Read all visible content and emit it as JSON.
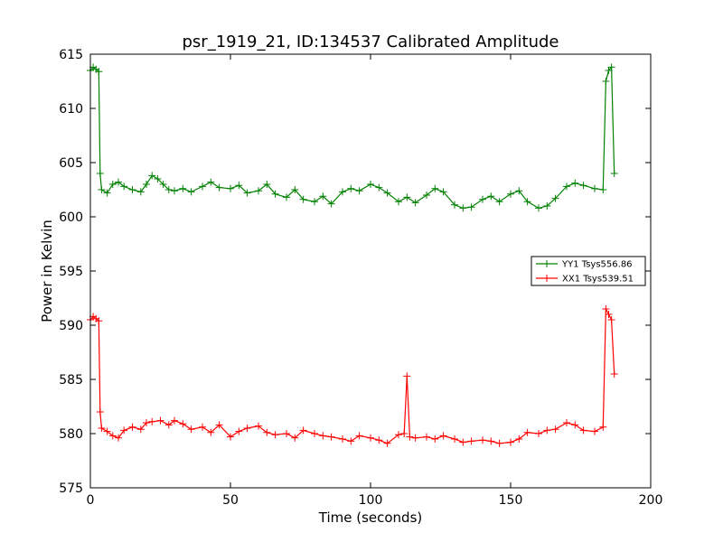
{
  "chart_data": {
    "type": "line",
    "title": "psr_1919_21, ID:134537 Calibrated Amplitude",
    "xlabel": "Time (seconds)",
    "ylabel": "Power in Kelvin",
    "xlim": [
      0,
      200
    ],
    "ylim": [
      575,
      615
    ],
    "xticks": [
      "0",
      "50",
      "100",
      "150",
      "200"
    ],
    "yticks": [
      "575",
      "580",
      "585",
      "590",
      "595",
      "600",
      "605",
      "610",
      "615"
    ],
    "grid": false,
    "legend_position": "right",
    "series": [
      {
        "name": "YY1 Tsys556.86",
        "color": "#008000",
        "marker": "plus",
        "x": [
          0,
          1,
          2,
          3,
          3.5,
          4,
          6,
          8,
          10,
          12,
          15,
          18,
          20,
          22,
          24,
          26,
          28,
          30,
          33,
          36,
          40,
          43,
          46,
          50,
          53,
          56,
          60,
          63,
          66,
          70,
          73,
          76,
          80,
          83,
          86,
          90,
          93,
          96,
          100,
          103,
          106,
          110,
          113,
          116,
          120,
          123,
          126,
          130,
          133,
          136,
          140,
          143,
          146,
          150,
          153,
          156,
          160,
          163,
          166,
          170,
          173,
          176,
          180,
          183,
          184,
          185,
          186,
          187
        ],
        "y": [
          613.5,
          613.8,
          613.6,
          613.4,
          604,
          602.5,
          602.2,
          603,
          603.2,
          602.8,
          602.5,
          602.3,
          603,
          603.8,
          603.5,
          603,
          602.5,
          602.4,
          602.6,
          602.3,
          602.8,
          603.2,
          602.7,
          602.6,
          602.9,
          602.2,
          602.4,
          603,
          602.1,
          601.8,
          602.5,
          601.6,
          601.4,
          601.9,
          601.2,
          602.3,
          602.6,
          602.4,
          603,
          602.7,
          602.2,
          601.4,
          601.8,
          601.3,
          602.0,
          602.6,
          602.3,
          601.1,
          600.8,
          600.9,
          601.6,
          601.9,
          601.4,
          602.1,
          602.4,
          601.4,
          600.8,
          601.0,
          601.7,
          602.8,
          603.1,
          602.9,
          602.6,
          602.5,
          612.5,
          613.5,
          613.8,
          604
        ]
      },
      {
        "name": "XX1 Tsys539.51",
        "color": "#ff0000",
        "marker": "plus",
        "x": [
          0,
          1,
          2,
          3,
          3.5,
          4,
          6,
          8,
          10,
          12,
          15,
          18,
          20,
          22,
          25,
          28,
          30,
          33,
          36,
          40,
          43,
          46,
          50,
          53,
          56,
          60,
          63,
          66,
          70,
          73,
          76,
          80,
          83,
          86,
          90,
          93,
          96,
          100,
          103,
          106,
          110,
          112,
          113,
          114,
          116,
          120,
          123,
          126,
          130,
          133,
          136,
          140,
          143,
          146,
          150,
          153,
          156,
          160,
          163,
          166,
          170,
          173,
          176,
          180,
          183,
          184,
          185,
          186,
          187
        ],
        "y": [
          590.5,
          590.8,
          590.6,
          590.4,
          582,
          580.5,
          580.2,
          579.8,
          579.6,
          580.3,
          580.6,
          580.4,
          581.0,
          581.1,
          581.2,
          580.8,
          581.2,
          580.9,
          580.4,
          580.6,
          580.1,
          580.8,
          579.7,
          580.2,
          580.5,
          580.7,
          580.1,
          579.9,
          580.0,
          579.6,
          580.3,
          580.0,
          579.8,
          579.7,
          579.5,
          579.3,
          579.8,
          579.6,
          579.4,
          579.1,
          579.9,
          580.0,
          585.3,
          579.7,
          579.6,
          579.7,
          579.5,
          579.8,
          579.5,
          579.2,
          579.3,
          579.4,
          579.3,
          579.1,
          579.2,
          579.5,
          580.1,
          580.0,
          580.3,
          580.4,
          581.0,
          580.8,
          580.3,
          580.2,
          580.6,
          591.5,
          591.0,
          590.5,
          585.5
        ]
      }
    ]
  }
}
